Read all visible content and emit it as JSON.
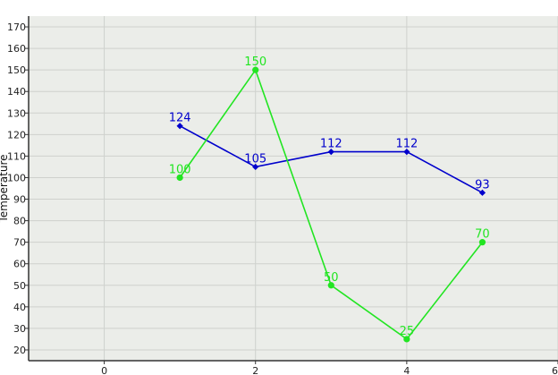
{
  "chart_data": {
    "type": "line",
    "title": "",
    "xlabel": "",
    "ylabel": "Temperature",
    "xlim": [
      -1,
      6
    ],
    "ylim": [
      15,
      175
    ],
    "x_ticks": [
      0,
      2,
      4,
      6
    ],
    "y_ticks": [
      20,
      30,
      40,
      50,
      60,
      70,
      80,
      90,
      100,
      110,
      120,
      130,
      140,
      150,
      160,
      170
    ],
    "grid": true,
    "legend": "none",
    "colors": {
      "background": "#ebede9",
      "grid": "#cfd1cd",
      "axis": "#333333"
    },
    "series": [
      {
        "color": "#0000cc",
        "marker": "diamond",
        "x": [
          1,
          2,
          3,
          4,
          5
        ],
        "y": [
          124,
          105,
          112,
          112,
          93
        ],
        "labels": [
          "124",
          "105",
          "112",
          "112",
          "93"
        ]
      },
      {
        "color": "#22e522",
        "marker": "circle",
        "x": [
          1,
          2,
          3,
          4,
          5
        ],
        "y": [
          100,
          150,
          50,
          25,
          70
        ],
        "labels": [
          "100",
          "150",
          "50",
          "25",
          "70"
        ]
      }
    ]
  }
}
